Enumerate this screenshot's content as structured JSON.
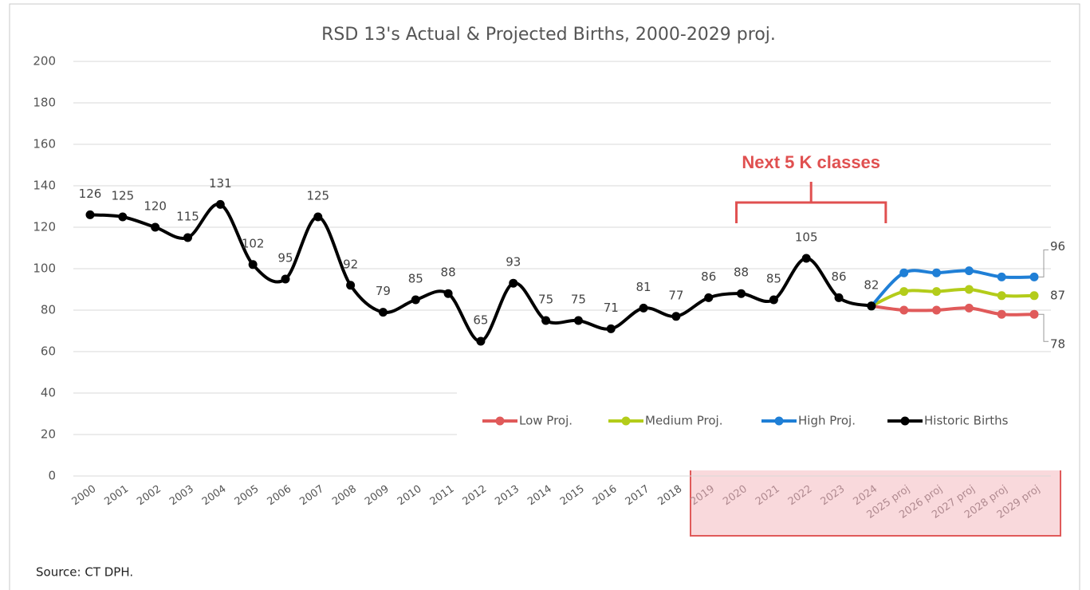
{
  "chart_data": {
    "type": "line",
    "title": "RSD 13's Actual & Projected Births, 2000-2029 proj.",
    "categories": [
      "2000",
      "2001",
      "2002",
      "2003",
      "2004",
      "2005",
      "2006",
      "2007",
      "2008",
      "2009",
      "2010",
      "2011",
      "2012",
      "2013",
      "2014",
      "2015",
      "2016",
      "2017",
      "2018",
      "2019",
      "2020",
      "2021",
      "2022",
      "2023",
      "2024",
      "2025 proj",
      "2026 proj",
      "2027 proj",
      "2028 proj",
      "2029 proj"
    ],
    "series": [
      {
        "name": "Low Proj.",
        "color": "#e05a5a",
        "data_labels": "end",
        "values": [
          null,
          null,
          null,
          null,
          null,
          null,
          null,
          null,
          null,
          null,
          null,
          null,
          null,
          null,
          null,
          null,
          null,
          null,
          null,
          null,
          null,
          null,
          null,
          null,
          82,
          80,
          80,
          81,
          78,
          78
        ]
      },
      {
        "name": "Medium Proj.",
        "color": "#b3cc1a",
        "data_labels": "end",
        "values": [
          null,
          null,
          null,
          null,
          null,
          null,
          null,
          null,
          null,
          null,
          null,
          null,
          null,
          null,
          null,
          null,
          null,
          null,
          null,
          null,
          null,
          null,
          null,
          null,
          82,
          89,
          89,
          90,
          87,
          87
        ]
      },
      {
        "name": "High Proj.",
        "color": "#1f7fd6",
        "data_labels": "end",
        "values": [
          null,
          null,
          null,
          null,
          null,
          null,
          null,
          null,
          null,
          null,
          null,
          null,
          null,
          null,
          null,
          null,
          null,
          null,
          null,
          null,
          null,
          null,
          null,
          null,
          82,
          98,
          98,
          99,
          96,
          96
        ]
      },
      {
        "name": "Historic Births",
        "color": "#000000",
        "data_labels": "all",
        "values": [
          126,
          125,
          120,
          115,
          131,
          102,
          95,
          125,
          92,
          79,
          85,
          88,
          65,
          93,
          75,
          75,
          71,
          81,
          77,
          86,
          88,
          85,
          105,
          86,
          82,
          null,
          null,
          null,
          null,
          null
        ]
      }
    ],
    "ylim": [
      0,
      200
    ],
    "yticks": [
      0,
      20,
      40,
      60,
      80,
      100,
      120,
      140,
      160,
      180,
      200
    ],
    "grid": true,
    "legend": "bottom-right",
    "annotation": {
      "text": "Next 5 K classes",
      "span": [
        "2020",
        "2024"
      ],
      "color": "#e05050"
    },
    "source": "Source:  CT DPH."
  }
}
